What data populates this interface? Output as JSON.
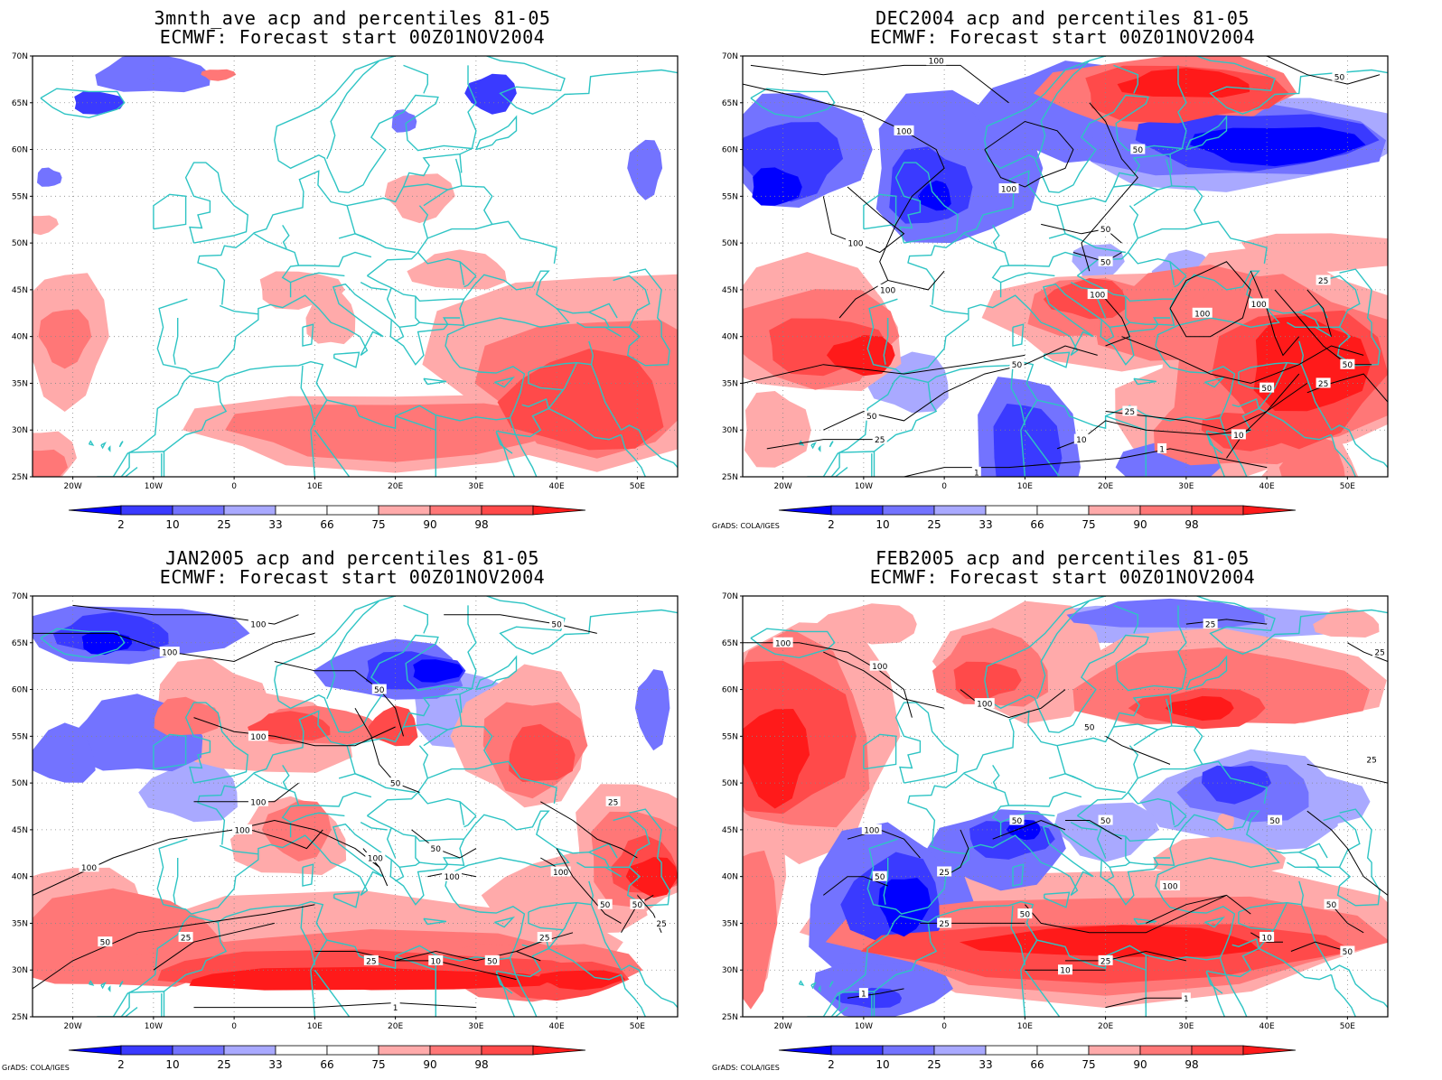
{
  "colors": {
    "blue_levels": [
      "#0000ff",
      "#3a3aff",
      "#7373ff",
      "#a9a9ff"
    ],
    "red_levels": [
      "#ffaaaa",
      "#ff7777",
      "#ff4a4a",
      "#ff1a1a"
    ],
    "coast": "#2ec4c4",
    "contour": "#000000"
  },
  "colorbar": {
    "labels": [
      "2",
      "10",
      "25",
      "33",
      "66",
      "75",
      "90",
      "98"
    ]
  },
  "credit": "GrADS: COLA/IGES",
  "axes": {
    "lat_labels": [
      "70N",
      "65N",
      "60N",
      "55N",
      "50N",
      "45N",
      "40N",
      "35N",
      "30N",
      "25N"
    ],
    "lon_labels": [
      "20W",
      "10W",
      "0",
      "10E",
      "20E",
      "30E",
      "40E",
      "50E"
    ]
  },
  "panels": [
    {
      "title1": "3mnth_ave acp and percentiles 81-05",
      "title2": "ECMWF: Forecast start 00Z01NOV2004",
      "show_credit": false,
      "contours": []
    },
    {
      "title1": "DEC2004 acp and percentiles 81-05",
      "title2": "ECMWF: Forecast start 00Z01NOV2004",
      "show_credit": true,
      "contours": [
        "100",
        "100",
        "100",
        "100",
        "100",
        "100",
        "100",
        "100",
        "50",
        "50",
        "50",
        "50",
        "50",
        "50",
        "50",
        "50",
        "25",
        "25",
        "25",
        "25",
        "10",
        "10",
        "1",
        "1"
      ]
    },
    {
      "title1": "JAN2005 acp and percentiles 81-05",
      "title2": "ECMWF: Forecast start 00Z01NOV2004",
      "show_credit": true,
      "contours": [
        "100",
        "100",
        "100",
        "100",
        "100",
        "100",
        "100",
        "100",
        "100",
        "50",
        "50",
        "50",
        "50",
        "50",
        "50",
        "50",
        "50",
        "25",
        "25",
        "25",
        "25",
        "25",
        "10",
        "1"
      ]
    },
    {
      "title1": "FEB2005 acp and percentiles 81-05",
      "title2": "ECMWF: Forecast start 00Z01NOV2004",
      "show_credit": true,
      "contours": [
        "100",
        "100",
        "100",
        "100",
        "100",
        "50",
        "50",
        "50",
        "50",
        "50",
        "50",
        "50",
        "50",
        "25",
        "25",
        "25",
        "25",
        "25",
        "25",
        "10",
        "10",
        "1",
        "1"
      ]
    }
  ]
}
